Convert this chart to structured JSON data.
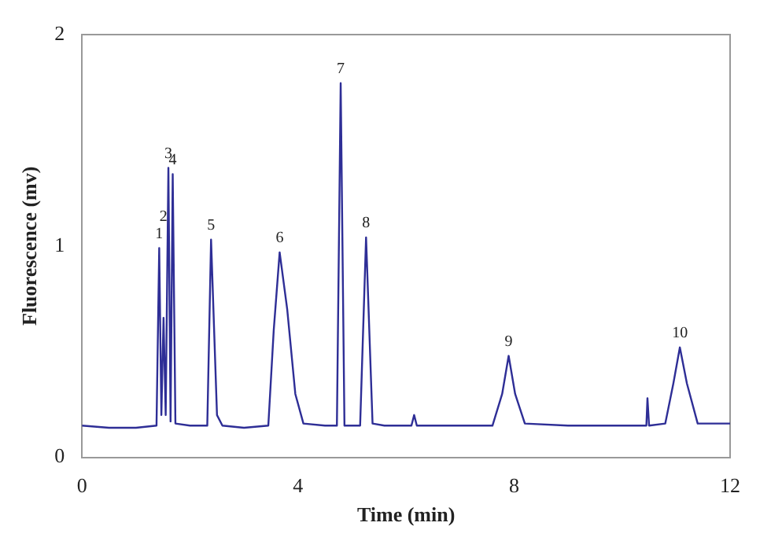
{
  "chart_data": {
    "type": "line",
    "xlabel": "Time (min)",
    "ylabel": "Fluorescence (mv)",
    "series": [
      {
        "color": "#2e2e96",
        "x": [
          0,
          0.5,
          1.0,
          1.38,
          1.43,
          1.47,
          1.51,
          1.55,
          1.6,
          1.64,
          1.68,
          1.73,
          2.0,
          2.32,
          2.39,
          2.5,
          2.6,
          3.0,
          3.45,
          3.55,
          3.66,
          3.8,
          3.95,
          4.1,
          4.5,
          4.72,
          4.79,
          4.86,
          5.15,
          5.26,
          5.38,
          5.6,
          6.1,
          6.15,
          6.2,
          7.0,
          7.6,
          7.78,
          7.9,
          8.02,
          8.2,
          9,
          10,
          10.45,
          10.47,
          10.5,
          10.8,
          10.95,
          11.07,
          11.2,
          11.4,
          12
        ],
        "values": [
          0.15,
          0.14,
          0.14,
          0.15,
          0.99,
          0.2,
          0.66,
          0.2,
          1.37,
          0.17,
          1.34,
          0.16,
          0.15,
          0.15,
          1.03,
          0.2,
          0.15,
          0.14,
          0.15,
          0.6,
          0.97,
          0.7,
          0.3,
          0.16,
          0.15,
          0.15,
          1.77,
          0.15,
          0.15,
          1.04,
          0.16,
          0.15,
          0.15,
          0.2,
          0.15,
          0.15,
          0.15,
          0.3,
          0.48,
          0.3,
          0.16,
          0.15,
          0.15,
          0.15,
          0.28,
          0.15,
          0.16,
          0.35,
          0.52,
          0.35,
          0.16,
          0.16
        ]
      }
    ],
    "xlim": [
      0,
      12
    ],
    "xticks": [
      0,
      4,
      8,
      12
    ],
    "ylim": [
      0,
      2
    ],
    "yticks": [
      0,
      1,
      2
    ],
    "grid": false,
    "legend": false,
    "marker": "none",
    "line_style": "solid",
    "annotations": [
      {
        "text": "1",
        "x": 1.43,
        "y": 0.99
      },
      {
        "text": "2",
        "x": 1.51,
        "y": 1.07
      },
      {
        "text": "3",
        "x": 1.6,
        "y": 1.37
      },
      {
        "text": "4",
        "x": 1.68,
        "y": 1.34
      },
      {
        "text": "5",
        "x": 2.39,
        "y": 1.03
      },
      {
        "text": "6",
        "x": 3.66,
        "y": 0.97
      },
      {
        "text": "7",
        "x": 4.79,
        "y": 1.77
      },
      {
        "text": "8",
        "x": 5.26,
        "y": 1.04
      },
      {
        "text": "9",
        "x": 7.9,
        "y": 0.48
      },
      {
        "text": "10",
        "x": 11.07,
        "y": 0.52
      }
    ]
  }
}
